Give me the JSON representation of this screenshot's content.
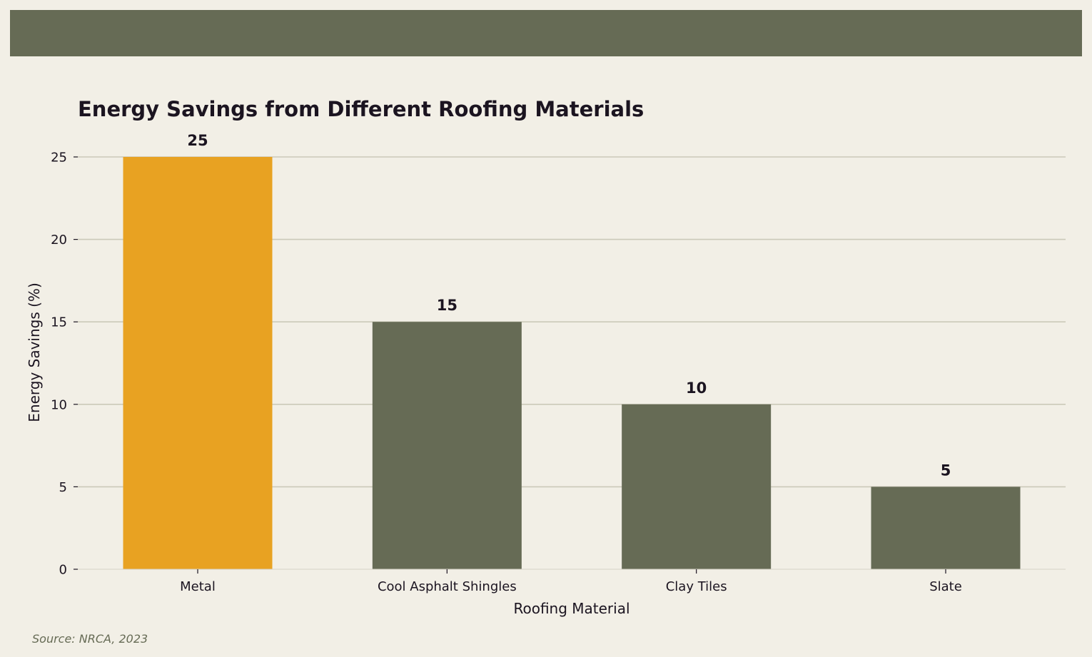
{
  "chart_data": {
    "type": "bar",
    "title": "Energy Savings from Different Roofing Materials",
    "xlabel": "Roofing Material",
    "ylabel": "Energy Savings (%)",
    "categories": [
      "Metal",
      "Cool Asphalt Shingles",
      "Clay Tiles",
      "Slate"
    ],
    "values": [
      25,
      15,
      10,
      5
    ],
    "ylim": [
      0,
      25
    ],
    "yticks": [
      0,
      5,
      10,
      15,
      20,
      25
    ],
    "grid": "horizontal",
    "data_labels": true,
    "bar_colors": [
      "#e8a222",
      "#666b55",
      "#666b55",
      "#666b55"
    ]
  },
  "footer": {
    "source": "Source: NRCA, 2023"
  },
  "colors": {
    "background": "#f2efe6",
    "header_band": "#666b55",
    "highlight": "#e8a222",
    "bar": "#666b55",
    "grid": "#cbc9b9",
    "text": "#1b1420"
  }
}
